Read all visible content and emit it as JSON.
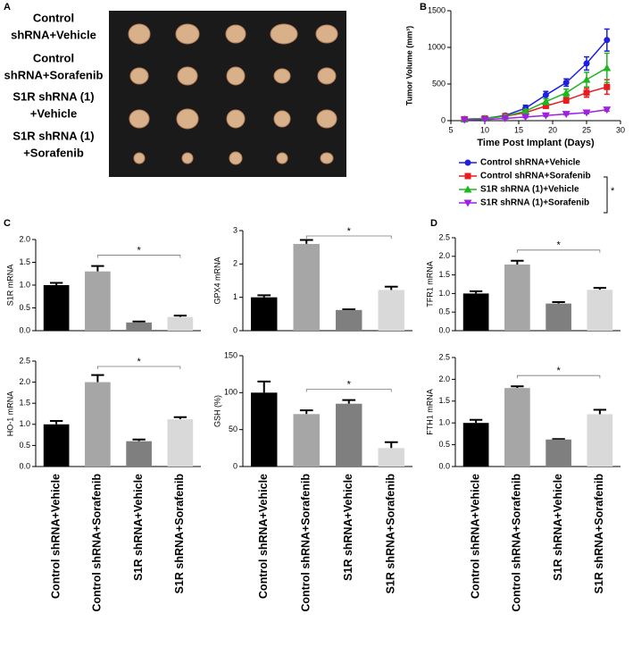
{
  "panel_a": {
    "label": "A",
    "rows": [
      [
        "Control",
        "shRNA+Vehicle"
      ],
      [
        "Control",
        "shRNA+Sorafenib"
      ],
      [
        "S1R shRNA (1)",
        "+Vehicle"
      ],
      [
        "S1R shRNA (1)",
        "+Sorafenib"
      ]
    ]
  },
  "chart_data": [
    {
      "type": "line",
      "panel": "B",
      "xlabel": "Time Post Implant (Days)",
      "ylabel": "Tumor Volume (mm³)",
      "x": [
        7,
        10,
        13,
        16,
        19,
        22,
        25,
        28
      ],
      "series": [
        {
          "name": "Control shRNA+Vehicle",
          "color": "#1f1fe0",
          "marker": "circle",
          "values": [
            20,
            30,
            70,
            170,
            350,
            520,
            780,
            1100
          ],
          "errors": [
            5,
            10,
            15,
            40,
            50,
            50,
            90,
            150
          ]
        },
        {
          "name": "Control shRNA+Sorafenib",
          "color": "#e81c1c",
          "marker": "square",
          "values": [
            20,
            30,
            60,
            110,
            200,
            280,
            380,
            460
          ],
          "errors": [
            5,
            8,
            10,
            20,
            30,
            40,
            60,
            100
          ]
        },
        {
          "name": "S1R shRNA (1)+Vehicle",
          "color": "#22b522",
          "marker": "triangle",
          "values": [
            20,
            30,
            60,
            130,
            260,
            380,
            560,
            720
          ],
          "errors": [
            5,
            8,
            10,
            25,
            40,
            50,
            100,
            200
          ]
        },
        {
          "name": "S1R shRNA (1)+Sorafenib",
          "color": "#a020e0",
          "marker": "triangle-down",
          "values": [
            10,
            15,
            30,
            50,
            70,
            90,
            110,
            150
          ],
          "errors": [
            5,
            5,
            5,
            10,
            10,
            10,
            15,
            20
          ]
        }
      ],
      "xlim": [
        5,
        30
      ],
      "xticks": [
        5,
        10,
        15,
        20,
        25,
        30
      ],
      "ylim": [
        0,
        1500
      ],
      "yticks": [
        0,
        500,
        1000,
        1500
      ],
      "legend_annotation": "*"
    },
    {
      "type": "bar",
      "panel": "C",
      "ylabel": "S1R mRNA",
      "values": [
        1.0,
        1.3,
        0.18,
        0.3
      ],
      "errors": [
        0.05,
        0.12,
        0.02,
        0.03
      ],
      "colors": [
        "#000000",
        "#a6a6a6",
        "#7f7f7f",
        "#d9d9d9"
      ],
      "ylim": [
        0,
        2
      ],
      "yticks": [
        {
          "value": 0,
          "label": "0.0"
        },
        0.5,
        {
          "value": 1,
          "label": "1.0"
        },
        1.5,
        {
          "value": 2,
          "label": "2.0"
        }
      ],
      "annotation": "*"
    },
    {
      "type": "bar",
      "ylabel": "GPX4 mRNA",
      "values": [
        1.0,
        2.6,
        0.62,
        1.22
      ],
      "errors": [
        0.06,
        0.12,
        0.02,
        0.1
      ],
      "colors": [
        "#000000",
        "#a6a6a6",
        "#7f7f7f",
        "#d9d9d9"
      ],
      "ylim": [
        0,
        3
      ],
      "yticks": [
        0,
        1,
        2,
        3
      ],
      "annotation": "*"
    },
    {
      "type": "bar",
      "panel": "D",
      "ylabel": "TFR1 mRNA",
      "values": [
        1.0,
        1.78,
        0.73,
        1.1
      ],
      "errors": [
        0.06,
        0.1,
        0.04,
        0.05
      ],
      "colors": [
        "#000000",
        "#a6a6a6",
        "#7f7f7f",
        "#d9d9d9"
      ],
      "ylim": [
        0,
        2.5
      ],
      "yticks": [
        {
          "value": 0,
          "label": "0.0"
        },
        0.5,
        {
          "value": 1,
          "label": "1.0"
        },
        1.5,
        {
          "value": 2,
          "label": "2.0"
        },
        2.5
      ],
      "annotation": "*"
    },
    {
      "type": "bar",
      "ylabel": "HO-1 mRNA",
      "categories": [
        "Control shRNA+Vehicle",
        "Control shRNA+Sorafenib",
        "S1R shRNA+Vehicle",
        "S1R shRNA+Sorafenib"
      ],
      "values": [
        1.0,
        2.0,
        0.6,
        1.12
      ],
      "errors": [
        0.08,
        0.17,
        0.04,
        0.05
      ],
      "colors": [
        "#000000",
        "#a6a6a6",
        "#7f7f7f",
        "#d9d9d9"
      ],
      "ylim": [
        0,
        2.5
      ],
      "yticks": [
        {
          "value": 0,
          "label": "0.0"
        },
        0.5,
        {
          "value": 1,
          "label": "1.0"
        },
        1.5,
        {
          "value": 2,
          "label": "2.0"
        },
        2.5
      ],
      "annotation": "*"
    },
    {
      "type": "bar",
      "ylabel": "GSH (%)",
      "categories": [
        "Control shRNA+Vehicle",
        "Control shRNA+Sorafenib",
        "S1R shRNA+Vehicle",
        "S1R shRNA+Sorafenib"
      ],
      "values": [
        100,
        71,
        85,
        25
      ],
      "errors": [
        15,
        5,
        5,
        8
      ],
      "colors": [
        "#000000",
        "#a6a6a6",
        "#7f7f7f",
        "#d9d9d9"
      ],
      "ylim": [
        0,
        150
      ],
      "yticks": [
        0,
        50,
        100,
        150
      ],
      "annotation": "*"
    },
    {
      "type": "bar",
      "ylabel": "FTH1 mRNA",
      "categories": [
        "Control shRNA+Vehicle",
        "Control shRNA+Sorafenib",
        "S1R shRNA+Vehicle",
        "S1R shRNA+Sorafenib"
      ],
      "values": [
        1.0,
        1.8,
        0.62,
        1.2
      ],
      "errors": [
        0.07,
        0.04,
        0.01,
        0.1
      ],
      "colors": [
        "#000000",
        "#a6a6a6",
        "#7f7f7f",
        "#d9d9d9"
      ],
      "ylim": [
        0,
        2.5
      ],
      "yticks": [
        {
          "value": 0,
          "label": "0.0"
        },
        0.5,
        {
          "value": 1,
          "label": "1.0"
        },
        1.5,
        {
          "value": 2,
          "label": "2.0"
        },
        2.5
      ],
      "annotation": "*"
    }
  ]
}
